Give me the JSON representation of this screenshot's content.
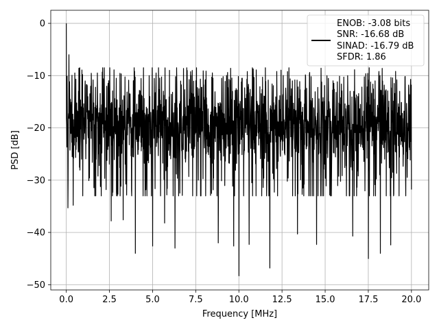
{
  "chart_data": {
    "type": "line",
    "title": "",
    "xlabel": "Frequency [MHz]",
    "ylabel": "PSD [dB]",
    "xlim": [
      -0.9,
      21.0
    ],
    "ylim": [
      -51.0,
      2.5
    ],
    "xticks": [
      0.0,
      2.5,
      5.0,
      7.5,
      10.0,
      12.5,
      15.0,
      17.5,
      20.0
    ],
    "xtick_labels": [
      "0.0",
      "2.5",
      "5.0",
      "7.5",
      "10.0",
      "12.5",
      "15.0",
      "17.5",
      "20.0"
    ],
    "yticks": [
      0,
      -10,
      -20,
      -30,
      -40,
      -50
    ],
    "ytick_labels": [
      "0",
      "−10",
      "−20",
      "−30",
      "−40",
      "−50"
    ],
    "grid": true,
    "legend": {
      "position": "upper-right",
      "entries": [
        "ENOB: -3.08 bits",
        "SNR: -16.68 dB",
        "SINAD: -16.79 dB",
        "SFDR: 1.86"
      ]
    },
    "series": [
      {
        "color": "#000000",
        "x_start": 0.0,
        "x_end": 20.0,
        "peak_value": 0.0,
        "typical_range": [
          -30,
          -10
        ],
        "deep_dips": [
          {
            "x": 0.1,
            "y": -35.3
          },
          {
            "x": 0.4,
            "y": -34.8
          },
          {
            "x": 2.6,
            "y": -37.8
          },
          {
            "x": 3.3,
            "y": -37.6
          },
          {
            "x": 4.0,
            "y": -44.0
          },
          {
            "x": 5.0,
            "y": -42.6
          },
          {
            "x": 5.7,
            "y": -38.2
          },
          {
            "x": 6.3,
            "y": -43.0
          },
          {
            "x": 8.8,
            "y": -42.0
          },
          {
            "x": 9.7,
            "y": -42.6
          },
          {
            "x": 10.0,
            "y": -48.3
          },
          {
            "x": 10.6,
            "y": -42.3
          },
          {
            "x": 11.8,
            "y": -46.8
          },
          {
            "x": 13.4,
            "y": -40.3
          },
          {
            "x": 14.5,
            "y": -42.3
          },
          {
            "x": 16.6,
            "y": -40.7
          },
          {
            "x": 17.5,
            "y": -45.0
          },
          {
            "x": 18.2,
            "y": -44.0
          },
          {
            "x": 18.8,
            "y": -42.4
          }
        ],
        "upper_peaks": [
          {
            "x": 0.0,
            "y": 0.0
          },
          {
            "x": 0.15,
            "y": -6.0
          },
          {
            "x": 0.5,
            "y": -9.5
          },
          {
            "x": 1.8,
            "y": -9.5
          },
          {
            "x": 2.9,
            "y": -10.5
          },
          {
            "x": 4.8,
            "y": -10.0
          },
          {
            "x": 5.2,
            "y": -9.5
          },
          {
            "x": 7.0,
            "y": -9.0
          },
          {
            "x": 7.3,
            "y": -9.0
          },
          {
            "x": 8.5,
            "y": -10.5
          },
          {
            "x": 10.2,
            "y": -10.5
          },
          {
            "x": 13.1,
            "y": -11.0
          },
          {
            "x": 15.1,
            "y": -10.0
          },
          {
            "x": 16.3,
            "y": -10.0
          },
          {
            "x": 19.0,
            "y": -11.5
          }
        ]
      }
    ]
  }
}
